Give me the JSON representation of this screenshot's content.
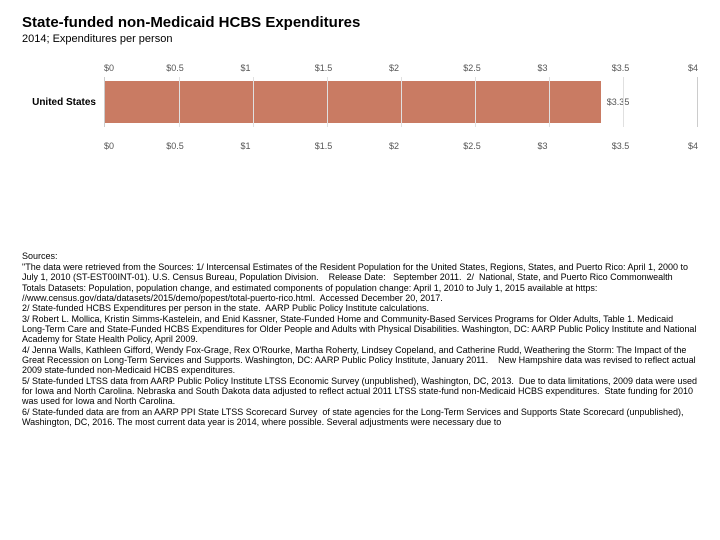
{
  "title": "State-funded non-Medicaid HCBS Expenditures",
  "subtitle": "2014; Expenditures per person",
  "chart": {
    "type": "bar-horizontal",
    "xmin": 0,
    "xmax": 4,
    "xticks": [
      "$0",
      "$0.5",
      "$1",
      "$1.5",
      "$2",
      "$2.5",
      "$3",
      "$3.5",
      "$4"
    ],
    "tick_positions": [
      0,
      0.5,
      1,
      1.5,
      2,
      2.5,
      3,
      3.5,
      4
    ],
    "bar_color": "#c97b63",
    "grid_color": "#e0e0e0",
    "background": "#ffffff",
    "label_fontsize": 9,
    "series": [
      {
        "label": "United States",
        "value": 3.35,
        "value_label": "$3.35"
      }
    ]
  },
  "sources_heading": "Sources:",
  "sources_text": "\"The data were retrieved from the Sources: 1/ Intercensal Estimates of the Resident Population for the United States, Regions, States, and Puerto Rico: April 1, 2000 to July 1, 2010 (ST-EST00INT-01). U.S. Census Bureau, Population Division.&nbsp; &nbsp; Release Date: &nbsp; September 2011.&nbsp; 2/&nbsp; National, State, and Puerto Rico Commonwealth Totals Datasets: Population, population change, and estimated components of population change: April 1, 2010 to July 1, 2015 available at https: //www.census.gov/data/datasets/2015/demo/popest/total-puerto-rico.html.&nbsp; Accessed December 20, 2017.\n2/ State-funded HCBS Expenditures per person in the state.&nbsp; AARP Public Policy Institute calculations.&nbsp;\n3/ Robert L. Mollica, Kristin Simms-Kastelein, and Enid Kassner, State-Funded Home and Community-Based Services Programs for Older Adults, Table 1. Medicaid Long-Term Care and State-Funded HCBS Expenditures for Older People and Adults with Physical Disabilities. Washington, DC: AARP Public Policy Institute and National Academy for State Health Policy, April 2009.\n4/ Jenna Walls, Kathleen Gifford, Wendy Fox-Grage, Rex O'Rourke, Martha Roherty, Lindsey Copeland, and Catherine Rudd, Weathering the Storm: The Impact of the Great Recession on Long-Term Services and Supports. Washington, DC: AARP Public Policy Institute, January 2011.&nbsp; &nbsp; New Hampshire data was revised to reflect actual 2009 state-funded non-Medicaid HCBS expenditures.\n5/ State-funded LTSS data from AARP Public Policy Institute LTSS Economic Survey (unpublished), Washington, DC, 2013.&nbsp; Due to data limitations, 2009 data were used for Iowa and North Carolina. Nebraska and South Dakota data adjusted to reflect actual 2011 LTSS state-fund non-Medicaid HCBS expenditures.&nbsp; State funding for 2010 was used for Iowa and North Carolina.\n6/ State-funded data are from an AARP PPI State LTSS Scorecard Survey&nbsp; of state agencies for the Long-Term Services and Supports State Scorecard (unpublished), Washington, DC, 2016. The most current data year is 2014, where possible. Several adjustments were necessary due to"
}
